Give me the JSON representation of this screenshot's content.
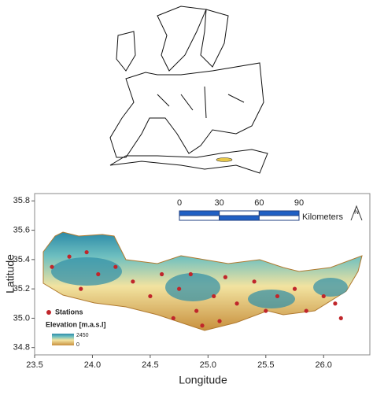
{
  "map": {
    "xlabel": "Longitude",
    "ylabel": "Latitude",
    "xlim": [
      23.5,
      26.4
    ],
    "xticks": [
      23.5,
      {
        "value": 24,
        "label": "24.0"
      },
      24.5,
      {
        "value": 25,
        "label": "25.0"
      },
      25.5,
      {
        "value": 26,
        "label": "26.0"
      }
    ],
    "ylim": [
      34.75,
      35.85
    ],
    "yticks": [
      34.8,
      {
        "value": 35,
        "label": "35.0"
      },
      35.2,
      35.4,
      35.6,
      35.8
    ],
    "scalebar": {
      "ticks": [
        0,
        30,
        60,
        90
      ],
      "unit": "Kilometers",
      "colors": [
        "#1f5fc4",
        "#ffffff"
      ]
    },
    "north": "N",
    "legend": {
      "stations": "Stations",
      "elevation_title": "Elevation [m.a.s.l]",
      "elevation_max": 2450,
      "elevation_min": 0
    },
    "stations": {
      "color": "#c0262b",
      "lon": [
        23.65,
        23.8,
        23.95,
        24.05,
        23.9,
        24.2,
        24.35,
        24.5,
        24.6,
        24.75,
        24.85,
        24.9,
        24.95,
        25.05,
        25.15,
        25.25,
        25.4,
        25.5,
        25.6,
        25.75,
        25.85,
        26.0,
        26.1,
        26.15,
        24.7,
        25.1
      ],
      "lat": [
        35.35,
        35.42,
        35.45,
        35.3,
        35.2,
        35.35,
        35.25,
        35.15,
        35.3,
        35.2,
        35.3,
        35.05,
        34.95,
        35.15,
        35.28,
        35.1,
        35.25,
        35.05,
        35.15,
        35.2,
        35.05,
        35.15,
        35.1,
        35.0,
        35.0,
        34.98
      ]
    }
  }
}
